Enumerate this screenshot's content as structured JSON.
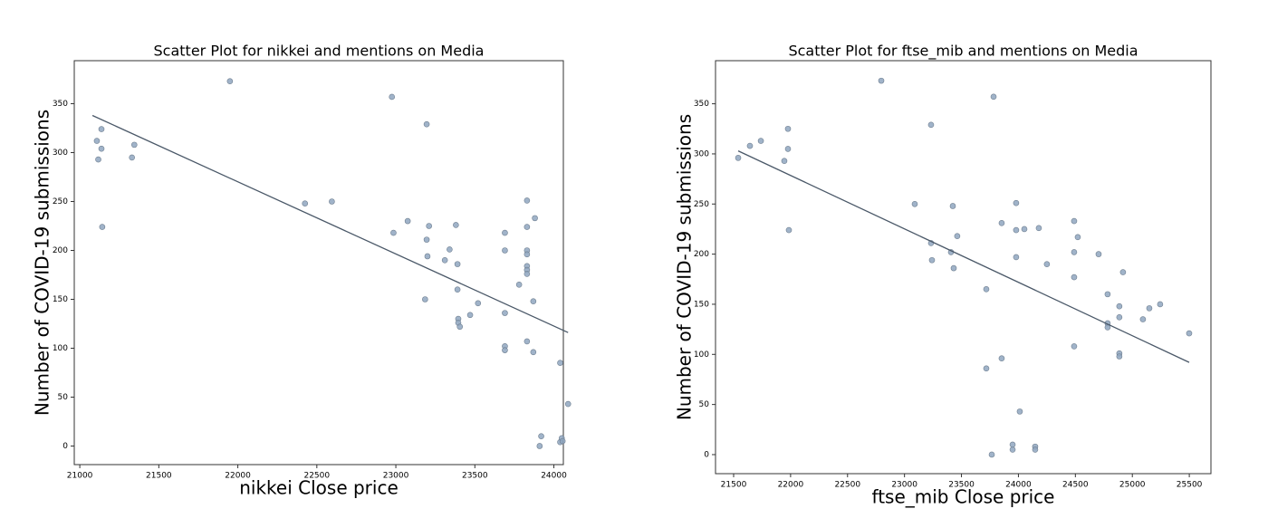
{
  "chart_data": [
    {
      "type": "scatter",
      "title": "Scatter Plot for nikkei and mentions on Media",
      "x_label": "nikkei Close price",
      "y_label": "Number of COVID-19 submissions",
      "color": "#8fa6bf",
      "line_color": "#4a5868",
      "xlim": [
        20965,
        24060
      ],
      "ylim": [
        -19,
        394
      ],
      "xticks": [
        21000,
        21500,
        22000,
        22500,
        23000,
        23500,
        24000
      ],
      "yticks": [
        0,
        50,
        100,
        150,
        200,
        250,
        300,
        350
      ],
      "x": [
        21108,
        21117,
        21137,
        21137,
        21142,
        21330,
        21345,
        21950,
        22425,
        22595,
        22975,
        22985,
        23075,
        23185,
        23195,
        23195,
        23200,
        23210,
        23310,
        23340,
        23380,
        23390,
        23390,
        23395,
        23395,
        23405,
        23470,
        23520,
        23690,
        23690,
        23690,
        23690,
        23690,
        23780,
        23830,
        23830,
        23830,
        23830,
        23830,
        23830,
        23830,
        23830,
        23870,
        23870,
        23880,
        23920,
        23910,
        24040,
        24040,
        24050,
        24055,
        24090
      ],
      "values": [
        312,
        293,
        324,
        304,
        224,
        295,
        308,
        373,
        248,
        250,
        357,
        218,
        230,
        150,
        329,
        211,
        194,
        225,
        190,
        201,
        226,
        186,
        160,
        130,
        126,
        122,
        134,
        146,
        218,
        200,
        136,
        102,
        98,
        165,
        251,
        224,
        200,
        196,
        184,
        180,
        176,
        107,
        148,
        96,
        233,
        10,
        0,
        85,
        4,
        8,
        5,
        43
      ],
      "trend_line": {
        "x": [
          21080,
          24090
        ],
        "y": [
          338,
          116
        ]
      }
    },
    {
      "type": "scatter",
      "title": "Scatter Plot for ftse_mib and mentions on Media",
      "x_label": "ftse_mib Close price",
      "y_label": "Number of COVID-19 submissions",
      "color": "#8fa6bf",
      "line_color": "#4a5868",
      "xlim": [
        21341,
        25690
      ],
      "ylim": [
        -19,
        393
      ],
      "xticks": [
        21500,
        22000,
        22500,
        23000,
        23500,
        24000,
        24500,
        25000,
        25500
      ],
      "yticks": [
        0,
        50,
        100,
        150,
        200,
        250,
        300,
        350
      ],
      "x": [
        21540,
        21643,
        21739,
        21945,
        21977,
        21977,
        21985,
        22796,
        23090,
        23233,
        23233,
        23241,
        23408,
        23424,
        23432,
        23463,
        23718,
        23718,
        23782,
        23766,
        23853,
        23853,
        23949,
        23949,
        23980,
        23980,
        23980,
        24012,
        24052,
        24147,
        24147,
        24179,
        24250,
        24489,
        24489,
        24489,
        24489,
        24521,
        24704,
        24783,
        24783,
        24783,
        24886,
        24886,
        24886,
        24886,
        24918,
        25093,
        25149,
        25244,
        25499
      ],
      "values": [
        296,
        308,
        313,
        293,
        325,
        305,
        224,
        373,
        250,
        329,
        211,
        194,
        202,
        248,
        186,
        218,
        165,
        86,
        357,
        0,
        96,
        231,
        5,
        10,
        251,
        224,
        197,
        43,
        225,
        8,
        5,
        226,
        190,
        233,
        202,
        177,
        108,
        217,
        200,
        160,
        131,
        127,
        148,
        137,
        101,
        98,
        182,
        135,
        146,
        150,
        121
      ],
      "trend_line": {
        "x": [
          21540,
          25499
        ],
        "y": [
          303,
          92
        ]
      }
    }
  ]
}
